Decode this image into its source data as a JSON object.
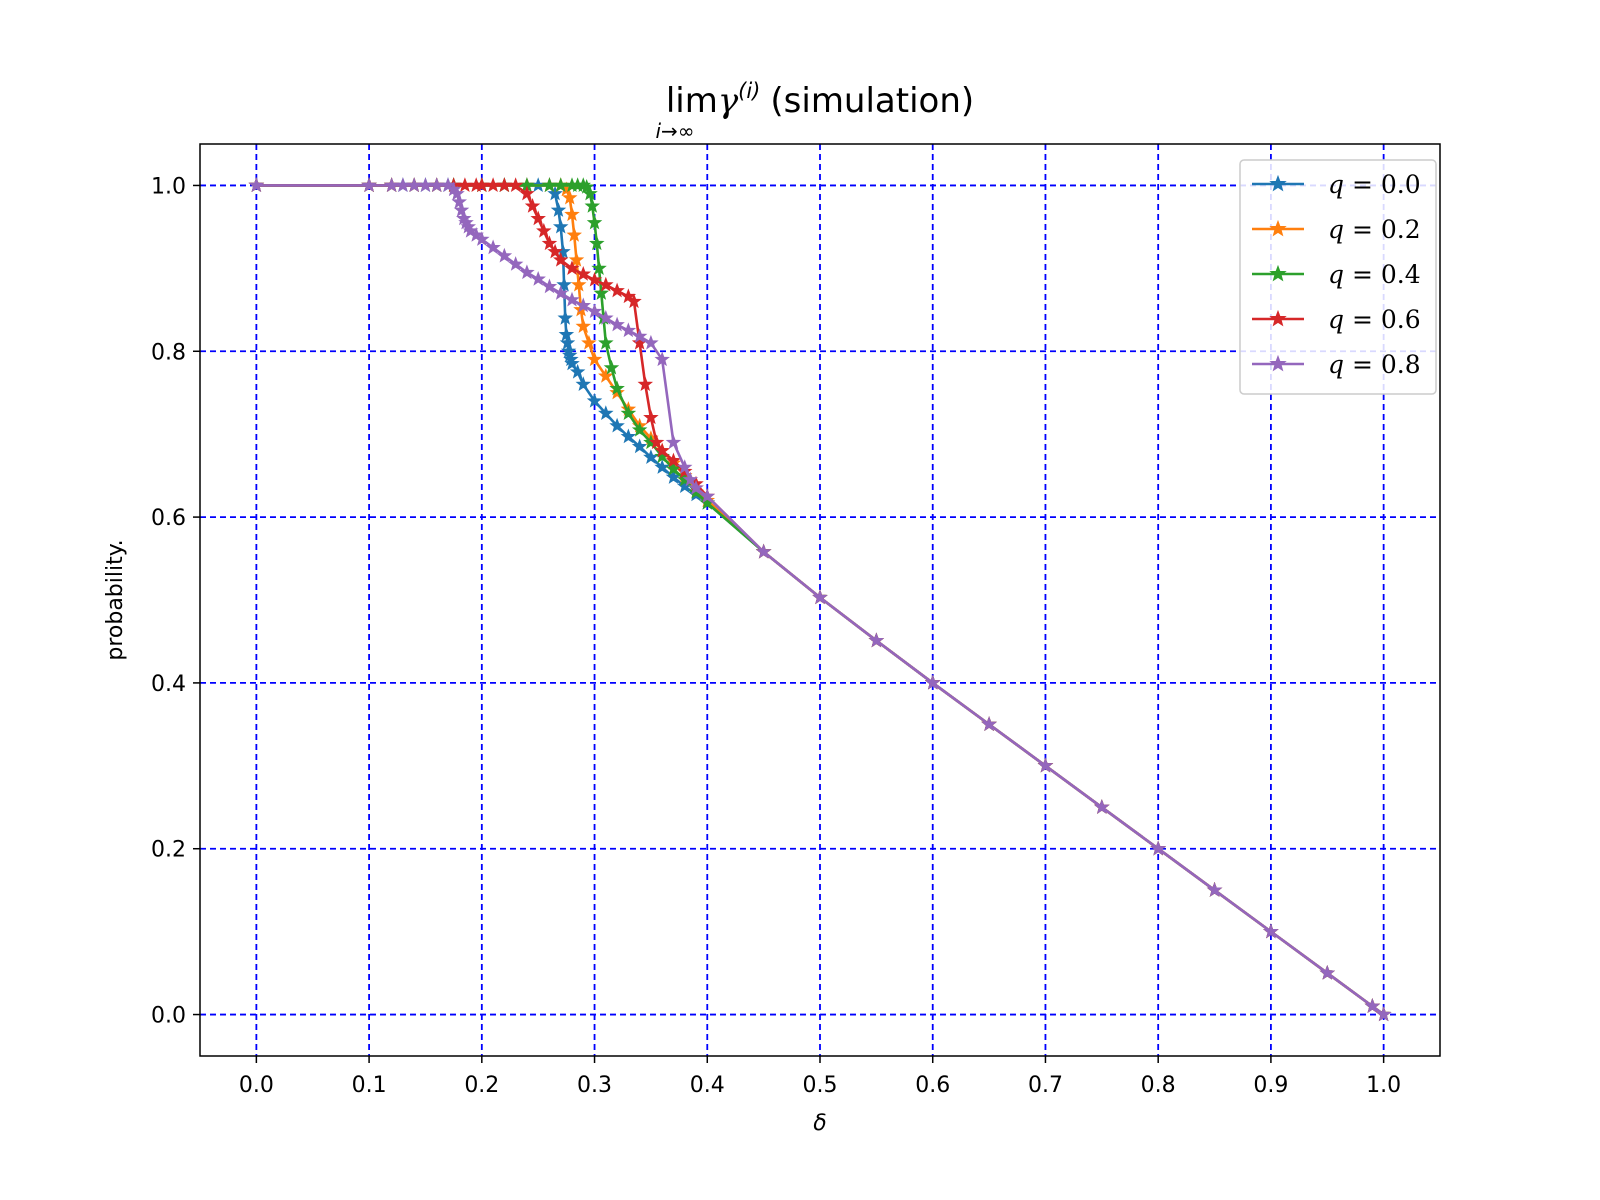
{
  "chart_data": {
    "type": "line",
    "title": "lim",
    "title_symbol": "γ",
    "title_superscript": "(i)",
    "title_suffix": "(simulation)",
    "title_subscript": "i→∞",
    "xlabel": "δ",
    "ylabel": "probability.",
    "xlim": [
      -0.05,
      1.05
    ],
    "ylim": [
      -0.05,
      1.05
    ],
    "xticks": [
      "0.0",
      "0.1",
      "0.2",
      "0.3",
      "0.4",
      "0.5",
      "0.6",
      "0.7",
      "0.8",
      "0.9",
      "1.0"
    ],
    "xtick_values": [
      0,
      0.1,
      0.2,
      0.3,
      0.4,
      0.5,
      0.6,
      0.7,
      0.8,
      0.9,
      1.0
    ],
    "yticks": [
      "0.0",
      "0.2",
      "0.4",
      "0.6",
      "0.8",
      "1.0"
    ],
    "ytick_values": [
      0,
      0.2,
      0.4,
      0.6,
      0.8,
      1.0
    ],
    "grid": true,
    "grid_color": "#0000ff",
    "legend_position": "top-right",
    "marker": "star",
    "series": [
      {
        "name": "q = 0.0",
        "legend_lhs": "q",
        "legend_rhs": "0.0",
        "color": "#1f77b4",
        "x": [
          0,
          0.1,
          0.12,
          0.13,
          0.14,
          0.15,
          0.16,
          0.17,
          0.175,
          0.2,
          0.22,
          0.24,
          0.25,
          0.26,
          0.265,
          0.268,
          0.27,
          0.272,
          0.273,
          0.274,
          0.275,
          0.276,
          0.277,
          0.278,
          0.279,
          0.28,
          0.285,
          0.29,
          0.3,
          0.31,
          0.32,
          0.33,
          0.34,
          0.35,
          0.36,
          0.37,
          0.38,
          0.39,
          0.4,
          0.45,
          0.5,
          0.55,
          0.6,
          0.65,
          0.7,
          0.75,
          0.8,
          0.85,
          0.9,
          0.95,
          0.99,
          1.0
        ],
        "y": [
          1.0,
          1.0,
          1.0,
          1.0,
          1.0,
          1.0,
          1.0,
          1.0,
          1.0,
          1.0,
          1.0,
          1.0,
          1.0,
          1.0,
          0.99,
          0.97,
          0.95,
          0.92,
          0.88,
          0.84,
          0.82,
          0.81,
          0.8,
          0.795,
          0.79,
          0.785,
          0.775,
          0.76,
          0.74,
          0.725,
          0.71,
          0.697,
          0.685,
          0.672,
          0.66,
          0.648,
          0.637,
          0.627,
          0.617,
          0.558,
          0.503,
          0.451,
          0.4,
          0.35,
          0.3,
          0.25,
          0.2,
          0.15,
          0.1,
          0.05,
          0.01,
          0.0
        ]
      },
      {
        "name": "q = 0.2",
        "legend_lhs": "q",
        "legend_rhs": "0.2",
        "color": "#ff7f0e",
        "x": [
          0,
          0.1,
          0.12,
          0.14,
          0.16,
          0.175,
          0.2,
          0.22,
          0.24,
          0.26,
          0.27,
          0.275,
          0.278,
          0.28,
          0.282,
          0.284,
          0.286,
          0.288,
          0.29,
          0.295,
          0.3,
          0.31,
          0.32,
          0.33,
          0.34,
          0.35,
          0.36,
          0.37,
          0.38,
          0.39,
          0.4,
          0.45,
          0.5,
          0.55,
          0.6,
          0.65,
          0.7,
          0.75,
          0.8,
          0.85,
          0.9,
          0.95,
          0.99,
          1.0
        ],
        "y": [
          1.0,
          1.0,
          1.0,
          1.0,
          1.0,
          1.0,
          1.0,
          1.0,
          1.0,
          1.0,
          1.0,
          0.995,
          0.985,
          0.965,
          0.94,
          0.91,
          0.88,
          0.85,
          0.83,
          0.81,
          0.79,
          0.77,
          0.75,
          0.73,
          0.71,
          0.695,
          0.68,
          0.665,
          0.65,
          0.635,
          0.62,
          0.558,
          0.503,
          0.451,
          0.4,
          0.35,
          0.3,
          0.25,
          0.2,
          0.15,
          0.1,
          0.05,
          0.01,
          0.0
        ]
      },
      {
        "name": "q = 0.4",
        "legend_lhs": "q",
        "legend_rhs": "0.4",
        "color": "#2ca02c",
        "x": [
          0,
          0.1,
          0.12,
          0.14,
          0.16,
          0.175,
          0.2,
          0.22,
          0.24,
          0.26,
          0.27,
          0.28,
          0.285,
          0.29,
          0.293,
          0.296,
          0.298,
          0.3,
          0.302,
          0.304,
          0.306,
          0.308,
          0.31,
          0.315,
          0.32,
          0.33,
          0.34,
          0.35,
          0.36,
          0.37,
          0.38,
          0.39,
          0.4,
          0.45,
          0.5,
          0.55,
          0.6,
          0.65,
          0.7,
          0.75,
          0.8,
          0.85,
          0.9,
          0.95,
          0.99,
          1.0
        ],
        "y": [
          1.0,
          1.0,
          1.0,
          1.0,
          1.0,
          1.0,
          1.0,
          1.0,
          1.0,
          1.0,
          1.0,
          1.0,
          1.0,
          1.0,
          0.998,
          0.99,
          0.975,
          0.955,
          0.93,
          0.9,
          0.87,
          0.84,
          0.81,
          0.78,
          0.755,
          0.725,
          0.705,
          0.69,
          0.673,
          0.658,
          0.645,
          0.63,
          0.617,
          0.558,
          0.503,
          0.451,
          0.4,
          0.35,
          0.3,
          0.25,
          0.2,
          0.15,
          0.1,
          0.05,
          0.01,
          0.0
        ]
      },
      {
        "name": "q = 0.6",
        "legend_lhs": "q",
        "legend_rhs": "0.6",
        "color": "#d62728",
        "x": [
          0,
          0.1,
          0.12,
          0.14,
          0.16,
          0.175,
          0.185,
          0.195,
          0.2,
          0.21,
          0.22,
          0.23,
          0.24,
          0.245,
          0.25,
          0.255,
          0.26,
          0.265,
          0.27,
          0.28,
          0.29,
          0.3,
          0.31,
          0.32,
          0.33,
          0.335,
          0.34,
          0.345,
          0.35,
          0.355,
          0.36,
          0.37,
          0.38,
          0.39,
          0.4,
          0.45,
          0.5,
          0.55,
          0.6,
          0.65,
          0.7,
          0.75,
          0.8,
          0.85,
          0.9,
          0.95,
          0.99,
          1.0
        ],
        "y": [
          1.0,
          1.0,
          1.0,
          1.0,
          1.0,
          1.0,
          1.0,
          1.0,
          1.0,
          1.0,
          1.0,
          1.0,
          0.99,
          0.975,
          0.96,
          0.945,
          0.93,
          0.92,
          0.91,
          0.9,
          0.893,
          0.886,
          0.88,
          0.873,
          0.866,
          0.86,
          0.81,
          0.76,
          0.72,
          0.69,
          0.68,
          0.668,
          0.655,
          0.64,
          0.625,
          0.558,
          0.503,
          0.451,
          0.4,
          0.35,
          0.3,
          0.25,
          0.2,
          0.15,
          0.1,
          0.05,
          0.01,
          0.0
        ]
      },
      {
        "name": "q = 0.8",
        "legend_lhs": "q",
        "legend_rhs": "0.8",
        "color": "#9467bd",
        "x": [
          0,
          0.1,
          0.12,
          0.13,
          0.14,
          0.15,
          0.16,
          0.17,
          0.175,
          0.178,
          0.18,
          0.182,
          0.184,
          0.186,
          0.188,
          0.19,
          0.195,
          0.2,
          0.21,
          0.22,
          0.23,
          0.24,
          0.25,
          0.26,
          0.27,
          0.28,
          0.29,
          0.3,
          0.31,
          0.32,
          0.33,
          0.34,
          0.35,
          0.36,
          0.37,
          0.38,
          0.385,
          0.39,
          0.4,
          0.45,
          0.5,
          0.55,
          0.6,
          0.65,
          0.7,
          0.75,
          0.8,
          0.85,
          0.9,
          0.95,
          0.99,
          1.0
        ],
        "y": [
          1.0,
          1.0,
          1.0,
          1.0,
          1.0,
          1.0,
          1.0,
          1.0,
          0.995,
          0.99,
          0.98,
          0.97,
          0.96,
          0.955,
          0.95,
          0.945,
          0.94,
          0.935,
          0.925,
          0.915,
          0.905,
          0.895,
          0.887,
          0.878,
          0.87,
          0.862,
          0.855,
          0.848,
          0.84,
          0.832,
          0.825,
          0.818,
          0.81,
          0.79,
          0.69,
          0.66,
          0.645,
          0.635,
          0.625,
          0.558,
          0.503,
          0.451,
          0.4,
          0.35,
          0.3,
          0.25,
          0.2,
          0.15,
          0.1,
          0.05,
          0.01,
          0.0
        ]
      }
    ]
  }
}
